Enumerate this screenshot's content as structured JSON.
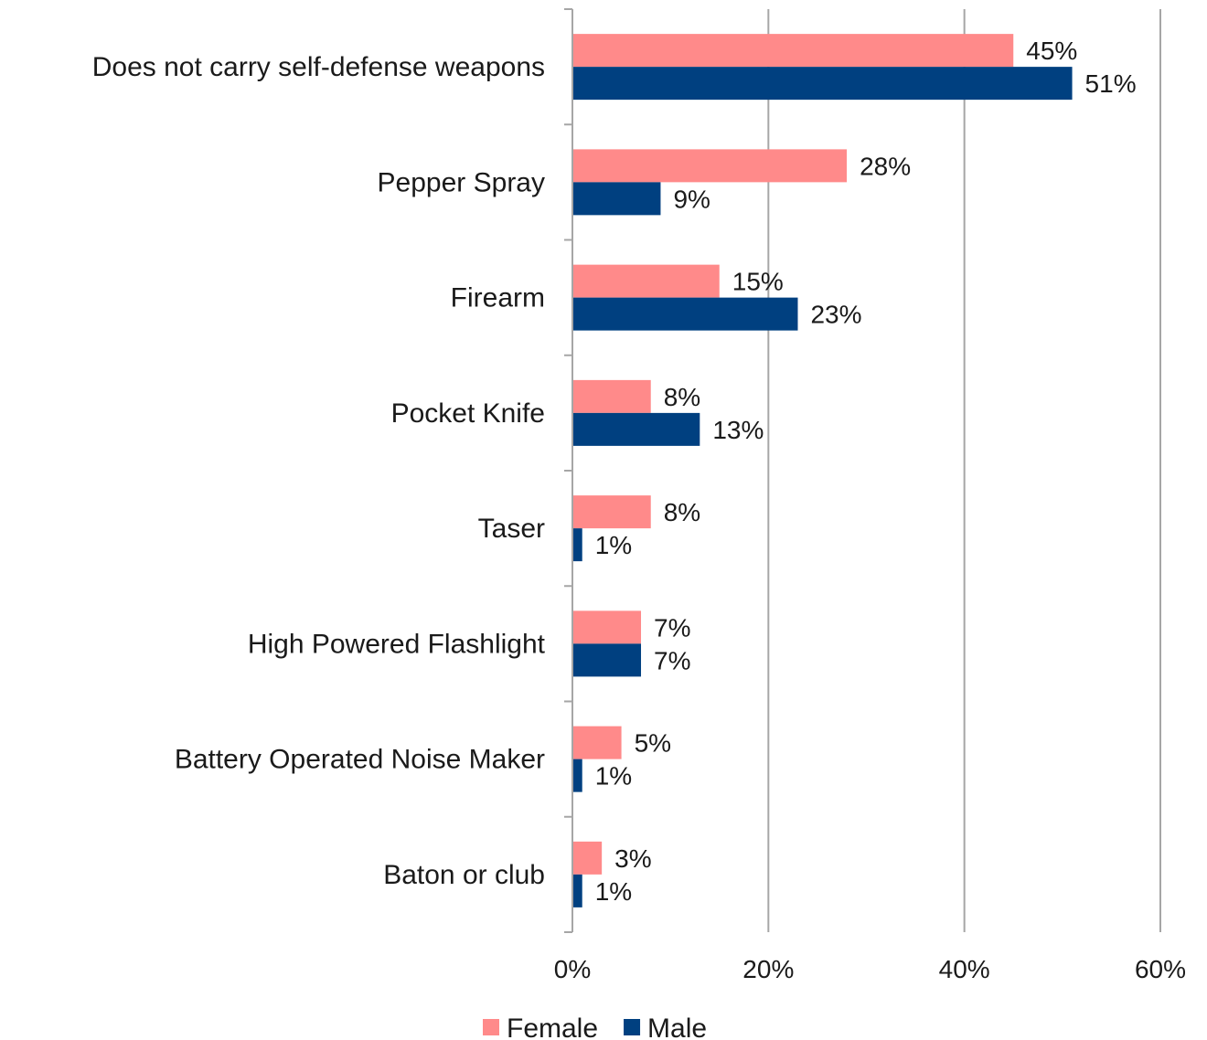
{
  "chart_data": {
    "type": "bar",
    "orientation": "horizontal",
    "categories": [
      "Does not carry self-defense weapons",
      "Pepper Spray",
      "Firearm",
      "Pocket Knife",
      "Taser",
      "High Powered Flashlight",
      "Battery Operated Noise Maker",
      "Baton or club"
    ],
    "series": [
      {
        "name": "Female",
        "color": "#FF8A8A",
        "values": [
          45,
          28,
          15,
          8,
          8,
          7,
          5,
          3
        ],
        "labels": [
          "45%",
          "28%",
          "15%",
          "8%",
          "8%",
          "7%",
          "5%",
          "3%"
        ]
      },
      {
        "name": "Male",
        "color": "#004080",
        "values": [
          51,
          9,
          23,
          13,
          1,
          7,
          1,
          1
        ],
        "labels": [
          "51%",
          "9%",
          "23%",
          "13%",
          "1%",
          "7%",
          "1%",
          "1%"
        ]
      }
    ],
    "xlim": [
      0,
      60
    ],
    "xticks": [
      0,
      20,
      40,
      60
    ],
    "xtick_labels": [
      "0%",
      "20%",
      "40%",
      "60%"
    ],
    "grid": true,
    "legend": "bottom"
  }
}
